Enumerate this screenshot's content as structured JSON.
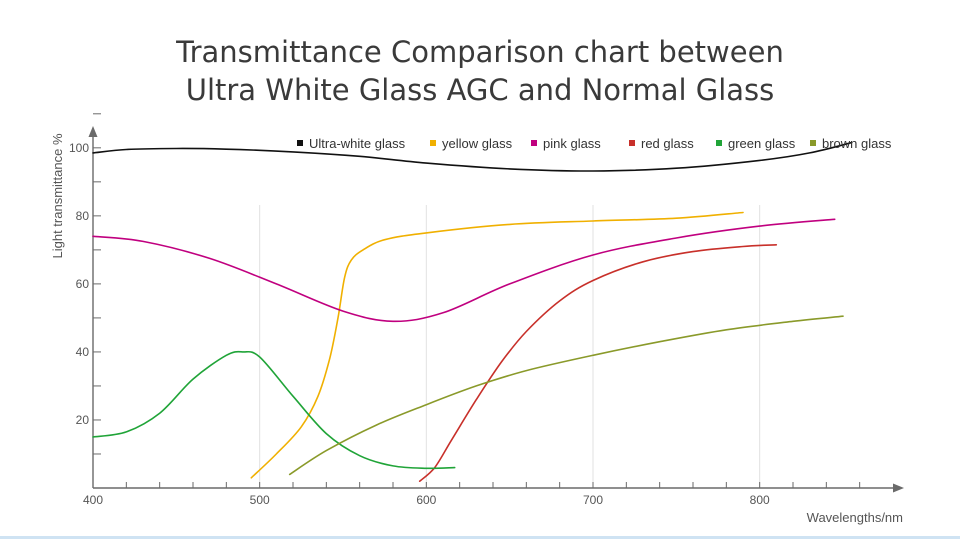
{
  "chart_data": {
    "type": "line",
    "title_line1": "Transmittance Comparison chart between",
    "title_line2": "Ultra White Glass AGC and Normal Glass",
    "xlabel": "Wavelengths/nm",
    "ylabel": "Light transmittance %",
    "xlim": [
      400,
      880
    ],
    "ylim": [
      0,
      112
    ],
    "x_ticks": [
      400,
      500,
      600,
      700,
      800
    ],
    "y_ticks": [
      20,
      40,
      60,
      80,
      100
    ],
    "grid": "vertical",
    "legend_position": "top",
    "series": [
      {
        "name": "Ultra-white glass",
        "color": "#111111",
        "x": [
          400,
          420,
          450,
          480,
          520,
          560,
          600,
          650,
          700,
          750,
          800,
          830,
          855
        ],
        "y": [
          98.5,
          99.5,
          99.8,
          99.6,
          98.8,
          97.5,
          95.5,
          93.8,
          93.2,
          94.0,
          96.3,
          98.5,
          101.5
        ]
      },
      {
        "name": "yellow glass",
        "color": "#f0b000",
        "x": [
          495,
          510,
          525,
          535,
          542,
          547,
          551,
          555,
          562,
          575,
          600,
          650,
          700,
          750,
          790
        ],
        "y": [
          3,
          10,
          18,
          27,
          38,
          50,
          62,
          67,
          70,
          73,
          75,
          77.5,
          78.5,
          79.3,
          81
        ]
      },
      {
        "name": "pink glass",
        "color": "#c0007f",
        "x": [
          400,
          430,
          470,
          510,
          550,
          580,
          610,
          650,
          700,
          750,
          800,
          845
        ],
        "y": [
          74,
          72.5,
          67.5,
          60,
          52,
          49,
          51.5,
          60,
          68.5,
          73.5,
          77,
          79
        ]
      },
      {
        "name": "red glass",
        "color": "#c8302a",
        "x": [
          596,
          605,
          615,
          630,
          645,
          660,
          680,
          700,
          730,
          760,
          790,
          810
        ],
        "y": [
          2,
          6,
          14,
          26,
          37,
          46,
          55,
          61,
          66.5,
          69.5,
          71,
          71.5
        ]
      },
      {
        "name": "green glass",
        "color": "#20a438",
        "x": [
          400,
          420,
          440,
          460,
          480,
          490,
          500,
          520,
          540,
          560,
          580,
          600,
          617
        ],
        "y": [
          15,
          16.5,
          22,
          32,
          39,
          40,
          38.5,
          27,
          16,
          9.5,
          6.5,
          5.8,
          6
        ]
      },
      {
        "name": "brown glass",
        "color": "#8a9a2a",
        "x": [
          518,
          540,
          570,
          600,
          630,
          660,
          700,
          740,
          780,
          820,
          850
        ],
        "y": [
          4,
          11,
          18.5,
          24.5,
          30,
          34.5,
          39,
          43,
          46.5,
          49,
          50.5
        ]
      }
    ]
  }
}
